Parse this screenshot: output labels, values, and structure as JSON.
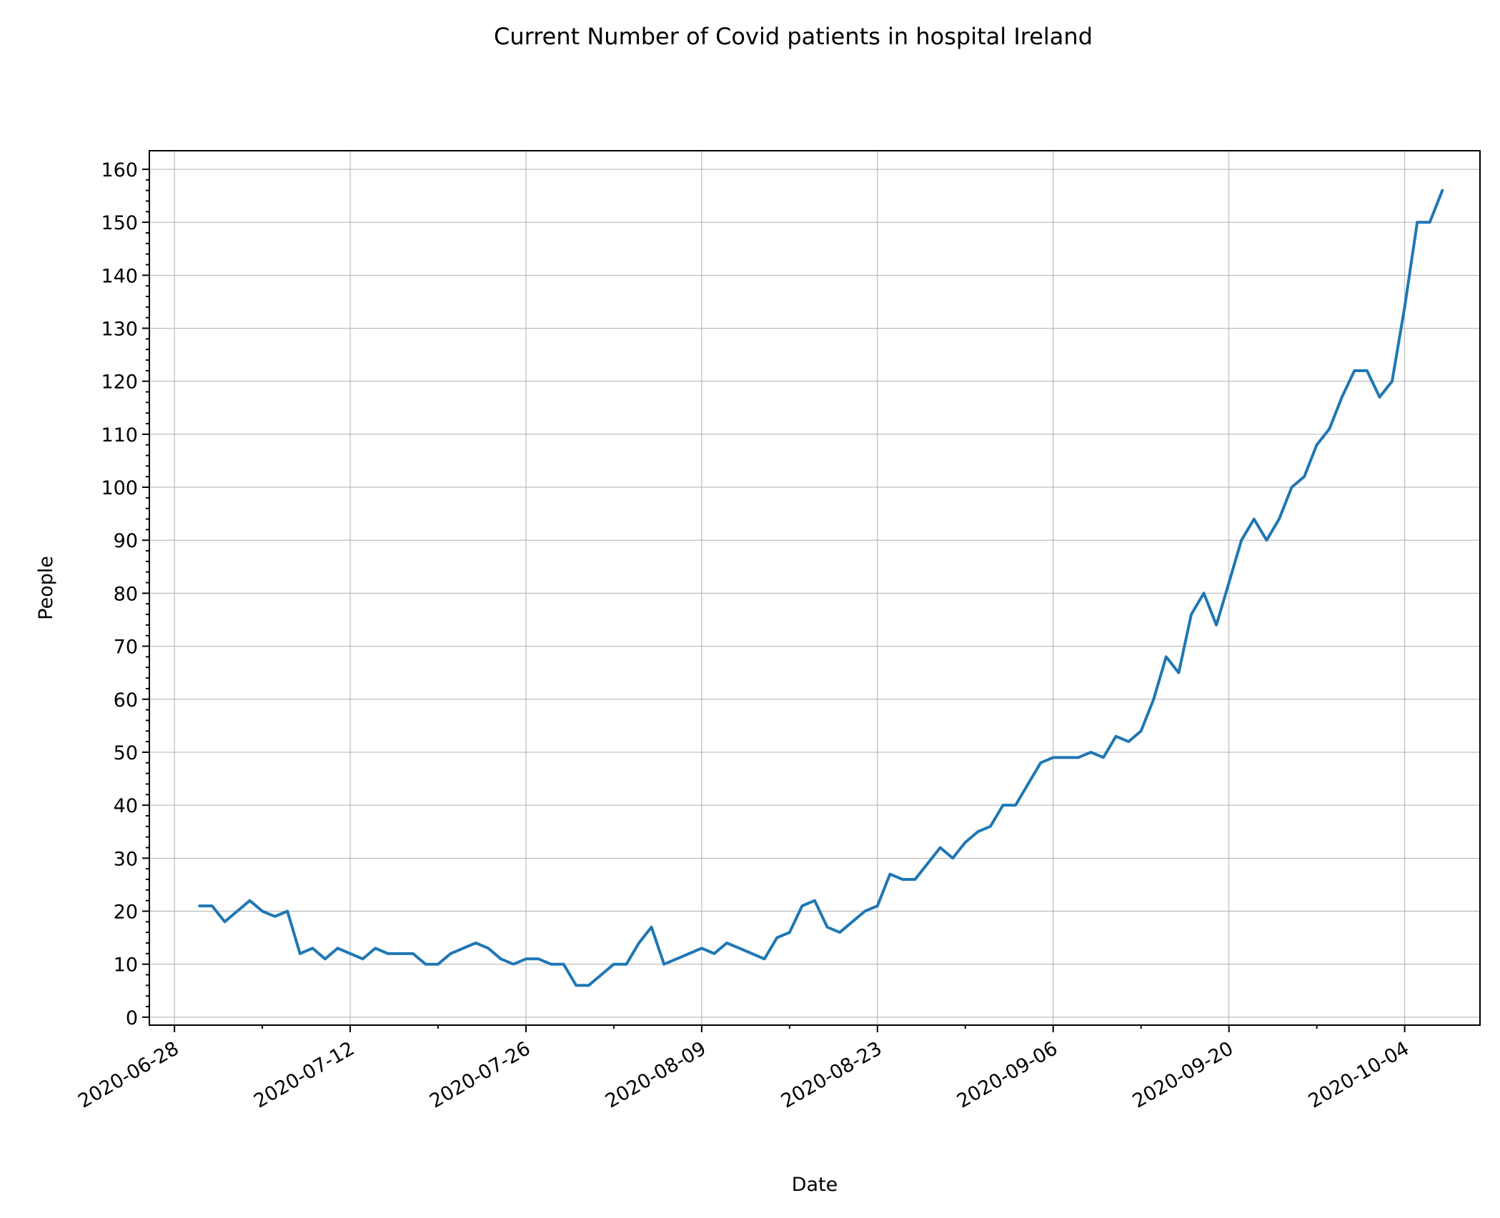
{
  "chart_data": {
    "type": "line",
    "title": "Current Number of Covid patients in hospital Ireland",
    "xlabel": "Date",
    "ylabel": "People",
    "grid": true,
    "xlim": [
      "2020-06-26",
      "2020-10-10"
    ],
    "ylim": [
      -1.5,
      163.5
    ],
    "x_ticks": [
      "2020-06-28",
      "2020-07-12",
      "2020-07-26",
      "2020-08-09",
      "2020-08-23",
      "2020-09-06",
      "2020-09-20",
      "2020-10-04"
    ],
    "y_ticks": [
      0,
      10,
      20,
      30,
      40,
      50,
      60,
      70,
      80,
      90,
      100,
      110,
      120,
      130,
      140,
      150,
      160
    ],
    "color": "#1f77b4",
    "series": [
      {
        "x": [
          "2020-06-30",
          "2020-07-01",
          "2020-07-02",
          "2020-07-03",
          "2020-07-04",
          "2020-07-05",
          "2020-07-06",
          "2020-07-07",
          "2020-07-08",
          "2020-07-09",
          "2020-07-10",
          "2020-07-11",
          "2020-07-12",
          "2020-07-13",
          "2020-07-14",
          "2020-07-15",
          "2020-07-16",
          "2020-07-17",
          "2020-07-18",
          "2020-07-19",
          "2020-07-20",
          "2020-07-21",
          "2020-07-22",
          "2020-07-23",
          "2020-07-24",
          "2020-07-25",
          "2020-07-26",
          "2020-07-27",
          "2020-07-28",
          "2020-07-29",
          "2020-07-30",
          "2020-07-31",
          "2020-08-01",
          "2020-08-02",
          "2020-08-03",
          "2020-08-04",
          "2020-08-05",
          "2020-08-06",
          "2020-08-07",
          "2020-08-08",
          "2020-08-09",
          "2020-08-10",
          "2020-08-11",
          "2020-08-12",
          "2020-08-13",
          "2020-08-14",
          "2020-08-15",
          "2020-08-16",
          "2020-08-17",
          "2020-08-18",
          "2020-08-19",
          "2020-08-20",
          "2020-08-21",
          "2020-08-22",
          "2020-08-23",
          "2020-08-24",
          "2020-08-25",
          "2020-08-26",
          "2020-08-27",
          "2020-08-28",
          "2020-08-29",
          "2020-08-30",
          "2020-08-31",
          "2020-09-01",
          "2020-09-02",
          "2020-09-03",
          "2020-09-04",
          "2020-09-05",
          "2020-09-06",
          "2020-09-07",
          "2020-09-08",
          "2020-09-09",
          "2020-09-10",
          "2020-09-11",
          "2020-09-12",
          "2020-09-13",
          "2020-09-14",
          "2020-09-15",
          "2020-09-16",
          "2020-09-17",
          "2020-09-18",
          "2020-09-19",
          "2020-09-20",
          "2020-09-21",
          "2020-09-22",
          "2020-09-23",
          "2020-09-24",
          "2020-09-25",
          "2020-09-26",
          "2020-09-27",
          "2020-09-28",
          "2020-09-29",
          "2020-09-30",
          "2020-10-01",
          "2020-10-02",
          "2020-10-03",
          "2020-10-04",
          "2020-10-05",
          "2020-10-06",
          "2020-10-07"
        ],
        "y": [
          21,
          21,
          18,
          20,
          22,
          20,
          19,
          20,
          12,
          13,
          11,
          13,
          12,
          11,
          13,
          12,
          12,
          12,
          10,
          10,
          12,
          13,
          14,
          13,
          11,
          10,
          11,
          11,
          10,
          10,
          6,
          6,
          8,
          10,
          10,
          14,
          17,
          10,
          11,
          12,
          13,
          12,
          14,
          13,
          12,
          11,
          15,
          16,
          21,
          22,
          17,
          16,
          18,
          20,
          21,
          27,
          26,
          26,
          29,
          32,
          30,
          33,
          35,
          36,
          40,
          40,
          44,
          48,
          49,
          49,
          49,
          50,
          49,
          53,
          52,
          54,
          60,
          68,
          65,
          76,
          80,
          74,
          82,
          90,
          94,
          90,
          94,
          100,
          102,
          108,
          111,
          117,
          122,
          122,
          117,
          120,
          134,
          150,
          150,
          156
        ]
      }
    ]
  }
}
